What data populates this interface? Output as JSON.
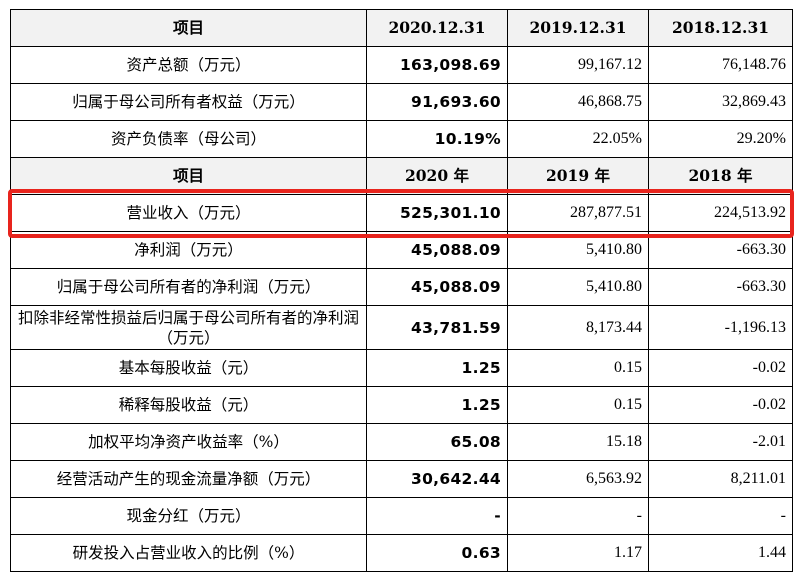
{
  "header1": {
    "col0": "项目",
    "col1": "2020.12.31",
    "col2": "2019.12.31",
    "col3": "2018.12.31"
  },
  "balance_rows": [
    {
      "label": "资产总额（万元）",
      "v2020": "163,098.69",
      "v2019": "99,167.12",
      "v2018": "76,148.76"
    },
    {
      "label": "归属于母公司所有者权益（万元）",
      "v2020": "91,693.60",
      "v2019": "46,868.75",
      "v2018": "32,869.43"
    },
    {
      "label": "资产负债率（母公司）",
      "v2020": "10.19%",
      "v2019": "22.05%",
      "v2018": "29.20%"
    }
  ],
  "header2": {
    "col0": "项目",
    "col1": "2020 年",
    "col2": "2019 年",
    "col3": "2018 年"
  },
  "income_rows": [
    {
      "label": "营业收入（万元）",
      "v2020": "525,301.10",
      "v2019": "287,877.51",
      "v2018": "224,513.92"
    },
    {
      "label": "净利润（万元）",
      "v2020": "45,088.09",
      "v2019": "5,410.80",
      "v2018": "-663.30"
    },
    {
      "label": "归属于母公司所有者的净利润（万元）",
      "v2020": "45,088.09",
      "v2019": "5,410.80",
      "v2018": "-663.30"
    },
    {
      "label": "扣除非经常性损益后归属于母公司所有者的净利润（万元）",
      "v2020": "43,781.59",
      "v2019": "8,173.44",
      "v2018": "-1,196.13"
    },
    {
      "label": "基本每股收益（元）",
      "v2020": "1.25",
      "v2019": "0.15",
      "v2018": "-0.02"
    },
    {
      "label": "稀释每股收益（元）",
      "v2020": "1.25",
      "v2019": "0.15",
      "v2018": "-0.02"
    },
    {
      "label": "加权平均净资产收益率（%）",
      "v2020": "65.08",
      "v2019": "15.18",
      "v2018": "-2.01"
    },
    {
      "label": "经营活动产生的现金流量净额（万元）",
      "v2020": "30,642.44",
      "v2019": "6,563.92",
      "v2018": "8,211.01"
    },
    {
      "label": "现金分红（万元）",
      "v2020": "-",
      "v2019": "-",
      "v2018": "-"
    },
    {
      "label": "研发投入占营业收入的比例（%）",
      "v2020": "0.63",
      "v2019": "1.17",
      "v2018": "1.44"
    }
  ],
  "highlight": {
    "color": "#e8241d",
    "row": "营业收入（万元）"
  },
  "colors": {
    "header_bg": "#f2f2f2",
    "border": "#000000"
  }
}
